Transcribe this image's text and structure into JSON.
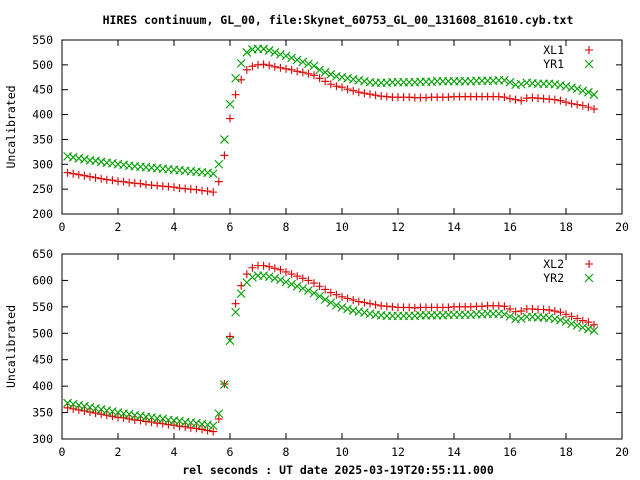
{
  "title": "HIRES continuum, GL_00, file:Skynet_60753_GL_00_131608_81610.cyb.txt",
  "xlabel": "rel seconds : UT date 2025-03-19T20:55:11.000",
  "chart_data": [
    {
      "type": "scatter",
      "ylabel": "Uncalibrated",
      "xlim": [
        0,
        20
      ],
      "ylim": [
        200,
        550
      ],
      "xticks": [
        0,
        2,
        4,
        6,
        8,
        10,
        12,
        14,
        16,
        18,
        20
      ],
      "yticks": [
        200,
        250,
        300,
        350,
        400,
        450,
        500,
        550
      ],
      "legend": "top-right",
      "series": [
        {
          "name": "XL1",
          "marker": "plus",
          "color": "#dd0000",
          "x": [
            0.2,
            0.4,
            0.6,
            0.8,
            1.0,
            1.2,
            1.4,
            1.6,
            1.8,
            2.0,
            2.2,
            2.4,
            2.6,
            2.8,
            3.0,
            3.2,
            3.4,
            3.6,
            3.8,
            4.0,
            4.2,
            4.4,
            4.6,
            4.8,
            5.0,
            5.2,
            5.4,
            5.6,
            5.8,
            6.0,
            6.2,
            6.4,
            6.6,
            6.8,
            7.0,
            7.2,
            7.4,
            7.6,
            7.8,
            8.0,
            8.2,
            8.4,
            8.6,
            8.8,
            9.0,
            9.2,
            9.4,
            9.6,
            9.8,
            10.0,
            10.2,
            10.4,
            10.6,
            10.8,
            11.0,
            11.2,
            11.4,
            11.6,
            11.8,
            12.0,
            12.2,
            12.4,
            12.6,
            12.8,
            13.0,
            13.2,
            13.4,
            13.6,
            13.8,
            14.0,
            14.2,
            14.4,
            14.6,
            14.8,
            15.0,
            15.2,
            15.4,
            15.6,
            15.8,
            16.0,
            16.2,
            16.4,
            16.6,
            16.8,
            17.0,
            17.2,
            17.4,
            17.6,
            17.8,
            18.0,
            18.2,
            18.4,
            18.6,
            18.8,
            19.0
          ],
          "y": [
            283,
            281,
            279,
            277,
            275,
            273,
            271,
            269,
            268,
            266,
            265,
            263,
            262,
            261,
            259,
            258,
            257,
            256,
            255,
            254,
            252,
            251,
            250,
            249,
            247,
            246,
            244,
            265,
            318,
            392,
            440,
            470,
            490,
            497,
            500,
            501,
            499,
            496,
            494,
            492,
            490,
            487,
            485,
            482,
            479,
            473,
            467,
            461,
            457,
            455,
            451,
            448,
            445,
            443,
            441,
            439,
            437,
            436,
            435,
            435,
            435,
            435,
            434,
            434,
            434,
            435,
            435,
            435,
            435,
            436,
            436,
            436,
            436,
            436,
            436,
            436,
            436,
            436,
            435,
            432,
            430,
            428,
            433,
            434,
            433,
            432,
            431,
            430,
            428,
            425,
            422,
            420,
            418,
            415,
            411
          ]
        },
        {
          "name": "YR1",
          "marker": "cross",
          "color": "#00a000",
          "x": [
            0.2,
            0.4,
            0.6,
            0.8,
            1.0,
            1.2,
            1.4,
            1.6,
            1.8,
            2.0,
            2.2,
            2.4,
            2.6,
            2.8,
            3.0,
            3.2,
            3.4,
            3.6,
            3.8,
            4.0,
            4.2,
            4.4,
            4.6,
            4.8,
            5.0,
            5.2,
            5.4,
            5.6,
            5.8,
            6.0,
            6.2,
            6.4,
            6.6,
            6.8,
            7.0,
            7.2,
            7.4,
            7.6,
            7.8,
            8.0,
            8.2,
            8.4,
            8.6,
            8.8,
            9.0,
            9.2,
            9.4,
            9.6,
            9.8,
            10.0,
            10.2,
            10.4,
            10.6,
            10.8,
            11.0,
            11.2,
            11.4,
            11.6,
            11.8,
            12.0,
            12.2,
            12.4,
            12.6,
            12.8,
            13.0,
            13.2,
            13.4,
            13.6,
            13.8,
            14.0,
            14.2,
            14.4,
            14.6,
            14.8,
            15.0,
            15.2,
            15.4,
            15.6,
            15.8,
            16.0,
            16.2,
            16.4,
            16.6,
            16.8,
            17.0,
            17.2,
            17.4,
            17.6,
            17.8,
            18.0,
            18.2,
            18.4,
            18.6,
            18.8,
            19.0
          ],
          "y": [
            316,
            314,
            312,
            310,
            308,
            307,
            305,
            303,
            302,
            300,
            299,
            297,
            296,
            295,
            294,
            293,
            292,
            291,
            290,
            289,
            288,
            287,
            286,
            285,
            284,
            283,
            281,
            300,
            350,
            421,
            473,
            503,
            525,
            531,
            532,
            532,
            529,
            525,
            521,
            518,
            514,
            510,
            506,
            502,
            498,
            490,
            485,
            481,
            477,
            475,
            473,
            471,
            469,
            467,
            465,
            464,
            464,
            464,
            465,
            465,
            465,
            465,
            465,
            466,
            466,
            466,
            467,
            467,
            467,
            467,
            467,
            467,
            467,
            468,
            468,
            468,
            468,
            469,
            469,
            465,
            460,
            461,
            464,
            463,
            462,
            462,
            462,
            461,
            459,
            457,
            454,
            452,
            448,
            445,
            440
          ]
        }
      ]
    },
    {
      "type": "scatter",
      "ylabel": "Uncalibrated",
      "xlim": [
        0,
        20
      ],
      "ylim": [
        300,
        650
      ],
      "xticks": [
        0,
        2,
        4,
        6,
        8,
        10,
        12,
        14,
        16,
        18,
        20
      ],
      "yticks": [
        300,
        350,
        400,
        450,
        500,
        550,
        600,
        650
      ],
      "legend": "top-right",
      "series": [
        {
          "name": "XL2",
          "marker": "plus",
          "color": "#dd0000",
          "x": [
            0.2,
            0.4,
            0.6,
            0.8,
            1.0,
            1.2,
            1.4,
            1.6,
            1.8,
            2.0,
            2.2,
            2.4,
            2.6,
            2.8,
            3.0,
            3.2,
            3.4,
            3.6,
            3.8,
            4.0,
            4.2,
            4.4,
            4.6,
            4.8,
            5.0,
            5.2,
            5.4,
            5.6,
            5.8,
            6.0,
            6.2,
            6.4,
            6.6,
            6.8,
            7.0,
            7.2,
            7.4,
            7.6,
            7.8,
            8.0,
            8.2,
            8.4,
            8.6,
            8.8,
            9.0,
            9.2,
            9.4,
            9.6,
            9.8,
            10.0,
            10.2,
            10.4,
            10.6,
            10.8,
            11.0,
            11.2,
            11.4,
            11.6,
            11.8,
            12.0,
            12.2,
            12.4,
            12.6,
            12.8,
            13.0,
            13.2,
            13.4,
            13.6,
            13.8,
            14.0,
            14.2,
            14.4,
            14.6,
            14.8,
            15.0,
            15.2,
            15.4,
            15.6,
            15.8,
            16.0,
            16.2,
            16.4,
            16.6,
            16.8,
            17.0,
            17.2,
            17.4,
            17.6,
            17.8,
            18.0,
            18.2,
            18.4,
            18.6,
            18.8,
            19.0
          ],
          "y": [
            359,
            357,
            355,
            353,
            351,
            349,
            347,
            345,
            343,
            341,
            340,
            338,
            336,
            335,
            333,
            332,
            330,
            329,
            327,
            326,
            324,
            323,
            321,
            320,
            318,
            316,
            314,
            338,
            404,
            494,
            556,
            590,
            612,
            624,
            628,
            628,
            626,
            623,
            620,
            616,
            612,
            608,
            604,
            600,
            595,
            589,
            583,
            577,
            573,
            569,
            566,
            563,
            560,
            558,
            556,
            554,
            552,
            551,
            550,
            549,
            549,
            549,
            548,
            549,
            549,
            549,
            549,
            549,
            549,
            550,
            550,
            550,
            550,
            551,
            551,
            552,
            552,
            552,
            551,
            546,
            541,
            542,
            546,
            546,
            545,
            545,
            544,
            542,
            540,
            536,
            532,
            528,
            524,
            521,
            516
          ]
        },
        {
          "name": "YR2",
          "marker": "cross",
          "color": "#00a000",
          "x": [
            0.2,
            0.4,
            0.6,
            0.8,
            1.0,
            1.2,
            1.4,
            1.6,
            1.8,
            2.0,
            2.2,
            2.4,
            2.6,
            2.8,
            3.0,
            3.2,
            3.4,
            3.6,
            3.8,
            4.0,
            4.2,
            4.4,
            4.6,
            4.8,
            5.0,
            5.2,
            5.4,
            5.6,
            5.8,
            6.0,
            6.2,
            6.4,
            6.6,
            6.8,
            7.0,
            7.2,
            7.4,
            7.6,
            7.8,
            8.0,
            8.2,
            8.4,
            8.6,
            8.8,
            9.0,
            9.2,
            9.4,
            9.6,
            9.8,
            10.0,
            10.2,
            10.4,
            10.6,
            10.8,
            11.0,
            11.2,
            11.4,
            11.6,
            11.8,
            12.0,
            12.2,
            12.4,
            12.6,
            12.8,
            13.0,
            13.2,
            13.4,
            13.6,
            13.8,
            14.0,
            14.2,
            14.4,
            14.6,
            14.8,
            15.0,
            15.2,
            15.4,
            15.6,
            15.8,
            16.0,
            16.2,
            16.4,
            16.6,
            16.8,
            17.0,
            17.2,
            17.4,
            17.6,
            17.8,
            18.0,
            18.2,
            18.4,
            18.6,
            18.8,
            19.0
          ],
          "y": [
            368,
            366,
            364,
            362,
            360,
            358,
            356,
            354,
            352,
            350,
            348,
            347,
            345,
            344,
            342,
            341,
            339,
            338,
            336,
            335,
            334,
            332,
            331,
            330,
            328,
            327,
            325,
            348,
            403,
            486,
            540,
            575,
            596,
            606,
            609,
            609,
            607,
            604,
            601,
            597,
            593,
            589,
            585,
            581,
            576,
            570,
            564,
            558,
            553,
            549,
            546,
            543,
            541,
            539,
            537,
            535,
            534,
            533,
            533,
            533,
            533,
            533,
            533,
            534,
            534,
            534,
            534,
            534,
            535,
            535,
            535,
            535,
            535,
            536,
            536,
            537,
            537,
            537,
            536,
            532,
            527,
            528,
            531,
            531,
            530,
            530,
            529,
            527,
            525,
            522,
            518,
            515,
            511,
            508,
            505
          ]
        }
      ]
    }
  ]
}
